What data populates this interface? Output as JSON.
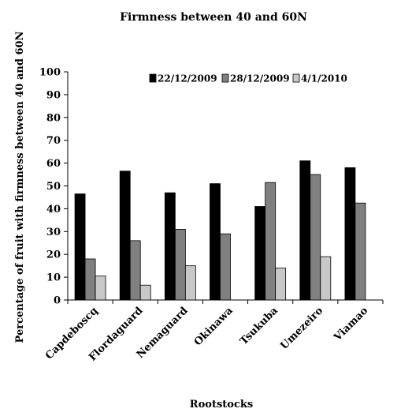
{
  "chart_data": {
    "type": "bar",
    "title": "Firmness between 40 and 60N",
    "xlabel": "Rootstocks",
    "ylabel": "Percentage of fruit with firmness between 40 and 60N",
    "ylim": [
      0,
      100
    ],
    "yticks": [
      0,
      10,
      20,
      30,
      40,
      50,
      60,
      70,
      80,
      90,
      100
    ],
    "categories": [
      "Capdeboscq",
      "Flordaguard",
      "Nemaguard",
      "Okinawa",
      "Tsukuba",
      "Umezeiro",
      "Viamao"
    ],
    "series": [
      {
        "name": "22/12/2009",
        "color": "#000000",
        "values": [
          46.5,
          56.5,
          47,
          51,
          41,
          61,
          58
        ]
      },
      {
        "name": "28/12/2009",
        "color": "#808080",
        "values": [
          18,
          26,
          31,
          29,
          51.5,
          55,
          42.5
        ]
      },
      {
        "name": "4/1/2010",
        "color": "#c8c8c8",
        "values": [
          10.5,
          6.5,
          15,
          0,
          14,
          19,
          0
        ]
      }
    ],
    "legend_position": "top",
    "grid": false
  }
}
